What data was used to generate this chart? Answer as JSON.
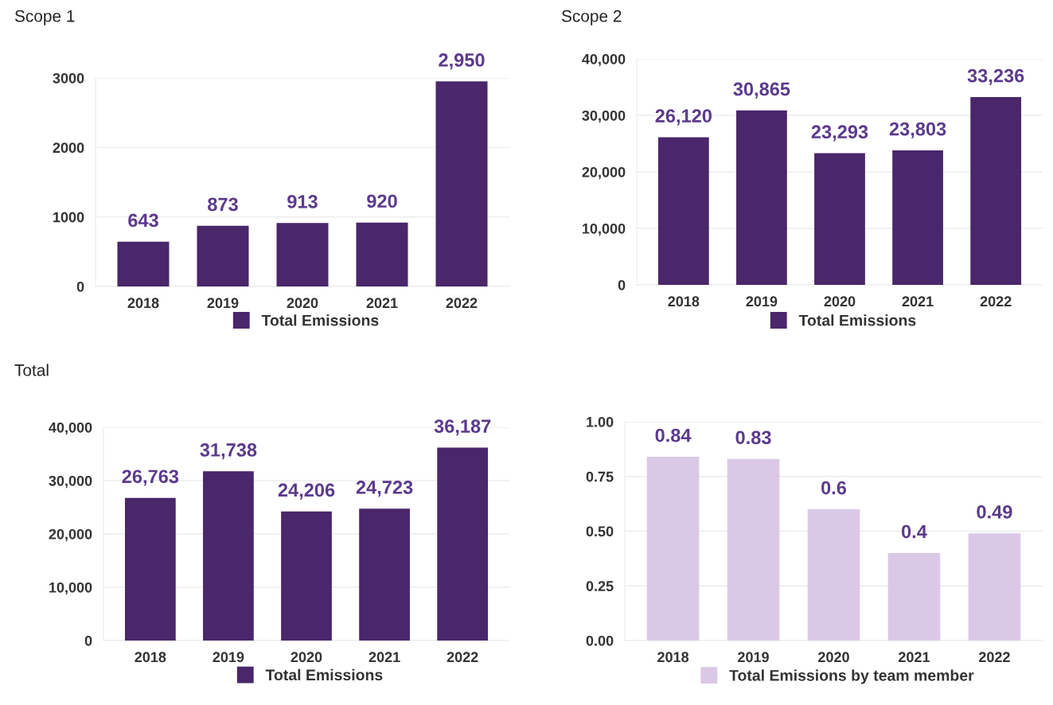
{
  "chart_data": [
    {
      "type": "bar",
      "title": "Scope 1",
      "categories": [
        "2018",
        "2019",
        "2020",
        "2021",
        "2022"
      ],
      "series": [
        {
          "name": "Total Emissions",
          "color": "#4a266a",
          "values": [
            643,
            873,
            913,
            920,
            2950
          ],
          "value_labels": [
            "643",
            "873",
            "913",
            "920",
            "2,950"
          ]
        }
      ],
      "ylim": [
        0,
        3000
      ],
      "yticks": [
        0,
        1000,
        2000,
        3000
      ],
      "grid": "y",
      "legend": "bottom"
    },
    {
      "type": "bar",
      "title": "Scope 2",
      "categories": [
        "2018",
        "2019",
        "2020",
        "2021",
        "2022"
      ],
      "series": [
        {
          "name": "Total Emissions",
          "color": "#4a266a",
          "values": [
            26120,
            30865,
            23293,
            23803,
            33236
          ],
          "value_labels": [
            "26,120",
            "30,865",
            "23,293",
            "23,803",
            "33,236"
          ]
        }
      ],
      "ylim": [
        0,
        40000
      ],
      "yticks": [
        0,
        {
          "value": 10000,
          "label": "10,000"
        },
        {
          "value": 20000,
          "label": "20,000"
        },
        {
          "value": 30000,
          "label": "30,000"
        },
        {
          "value": 40000,
          "label": "40,000"
        }
      ],
      "grid": "y",
      "legend": "bottom"
    },
    {
      "type": "bar",
      "title": "Total",
      "categories": [
        "2018",
        "2019",
        "2020",
        "2021",
        "2022"
      ],
      "series": [
        {
          "name": "Total Emissions",
          "color": "#4a266a",
          "values": [
            26763,
            31738,
            24206,
            24723,
            36187
          ],
          "value_labels": [
            "26,763",
            "31,738",
            "24,206",
            "24,723",
            "36,187"
          ]
        }
      ],
      "ylim": [
        0,
        40000
      ],
      "yticks": [
        0,
        {
          "value": 10000,
          "label": "10,000"
        },
        {
          "value": 20000,
          "label": "20,000"
        },
        {
          "value": 30000,
          "label": "30,000"
        },
        {
          "value": 40000,
          "label": "40,000"
        }
      ],
      "grid": "y",
      "legend": "bottom"
    },
    {
      "type": "bar",
      "categories": [
        "2018",
        "2019",
        "2020",
        "2021",
        "2022"
      ],
      "series": [
        {
          "name": "Total Emissions by team member",
          "color": "#d9c9e6",
          "values": [
            0.84,
            0.83,
            0.6,
            0.4,
            0.49
          ],
          "value_labels": [
            "0.84",
            "0.83",
            "0.6",
            "0.4",
            "0.49"
          ]
        }
      ],
      "ylim": [
        0,
        1
      ],
      "yticks": [
        {
          "value": 0,
          "label": "0.00"
        },
        {
          "value": 0.25,
          "label": "0.25"
        },
        {
          "value": 0.5,
          "label": "0.50"
        },
        {
          "value": 0.75,
          "label": "0.75"
        },
        {
          "value": 1,
          "label": "1.00"
        }
      ],
      "grid": "y",
      "legend": "bottom"
    }
  ]
}
